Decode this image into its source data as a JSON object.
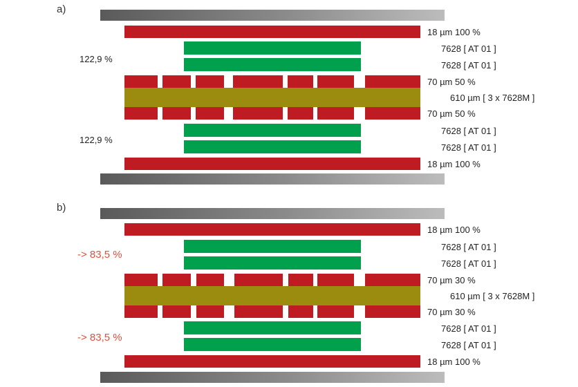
{
  "colors": {
    "copper": "#bf1b22",
    "prepreg": "#00a04c",
    "core": "#9b8c10",
    "plate": "gray-gradient",
    "highlight": "#e0503c"
  },
  "panels": [
    {
      "label": "a)",
      "fill_top": "122,9 %",
      "fill_bottom": "122,9 %",
      "layers": {
        "top_copper": "18 µm 100 %",
        "prepreg_1": "7628 [ AT 01 ]",
        "prepreg_2": "7628 [ AT 01 ]",
        "inner_top": "70 µm 50 %",
        "core": "610 µm  [ 3 x 7628M ]",
        "inner_bottom": "70 µm 50 %",
        "prepreg_3": "7628 [ AT 01 ]",
        "prepreg_4": "7628 [ AT 01 ]",
        "bottom_copper": "18 µm 100 %"
      }
    },
    {
      "label": "b)",
      "fill_top": "-> 83,5 %",
      "fill_bottom": "-> 83,5 %",
      "layers": {
        "top_copper": "18 µm 100 %",
        "prepreg_1": "7628 [ AT 01 ]",
        "prepreg_2": "7628 [ AT 01 ]",
        "inner_top": "70 µm 30 %",
        "core": "610 µm  [ 3 x 7628M ]",
        "inner_bottom": "70 µm 30 %",
        "prepreg_3": "7628 [ AT 01 ]",
        "prepreg_4": "7628 [ AT 01 ]",
        "bottom_copper": "18 µm 100 %"
      }
    }
  ]
}
